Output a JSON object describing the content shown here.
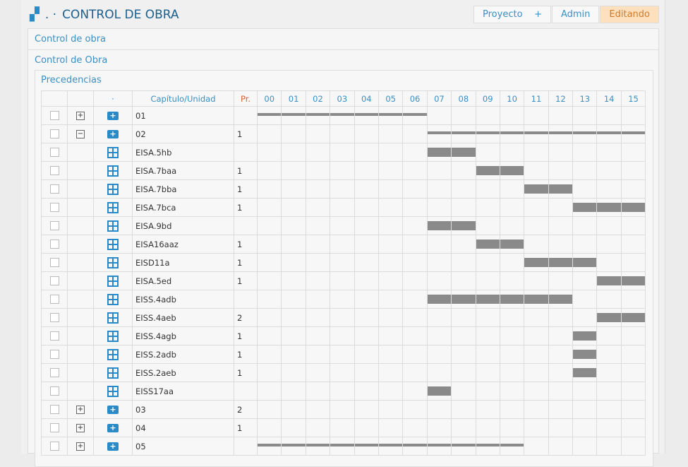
{
  "header": {
    "title": "CONTROL DE OBRA",
    "dots": ". ·",
    "buttons": [
      "Proyecto",
      "Admin",
      "Editando"
    ],
    "plus": "+"
  },
  "section1": "Control de obra",
  "section2": "Control de Obra",
  "panel": "Precedencias",
  "columns": {
    "dot": "·",
    "name": "Capítulo/Unidad",
    "pr": "Pr.",
    "weeks": [
      "00",
      "01",
      "02",
      "03",
      "04",
      "05",
      "06",
      "07",
      "08",
      "09",
      "10",
      "11",
      "12",
      "13",
      "14",
      "15"
    ]
  },
  "rows": [
    {
      "type": "chapter",
      "expand": "+",
      "name": "01",
      "pr": "",
      "start": 0,
      "end": 6
    },
    {
      "type": "chapter",
      "expand": "−",
      "name": "02",
      "pr": "1",
      "start": 7,
      "end": 15
    },
    {
      "type": "unit",
      "name": "EISA.5hb",
      "pr": "",
      "start": 7,
      "end": 8
    },
    {
      "type": "unit",
      "name": "EISA.7baa",
      "pr": "1",
      "start": 9,
      "end": 10
    },
    {
      "type": "unit",
      "name": "EISA.7bba",
      "pr": "1",
      "start": 11,
      "end": 12
    },
    {
      "type": "unit",
      "name": "EISA.7bca",
      "pr": "1",
      "start": 13,
      "end": 15
    },
    {
      "type": "unit",
      "name": "EISA.9bd",
      "pr": "",
      "start": 7,
      "end": 8
    },
    {
      "type": "unit",
      "name": "EISA16aaz",
      "pr": "1",
      "start": 9,
      "end": 10
    },
    {
      "type": "unit",
      "name": "EISD11a",
      "pr": "1",
      "start": 11,
      "end": 13
    },
    {
      "type": "unit",
      "name": "EISA.5ed",
      "pr": "1",
      "start": 14,
      "end": 15
    },
    {
      "type": "unit",
      "name": "EISS.4adb",
      "pr": "",
      "start": 7,
      "end": 12
    },
    {
      "type": "unit",
      "name": "EISS.4aeb",
      "pr": "2",
      "start": 14,
      "end": 15
    },
    {
      "type": "unit",
      "name": "EISS.4agb",
      "pr": "1",
      "start": 13,
      "end": 13
    },
    {
      "type": "unit",
      "name": "EISS.2adb",
      "pr": "1",
      "start": 13,
      "end": 13
    },
    {
      "type": "unit",
      "name": "EISS.2aeb",
      "pr": "1",
      "start": 13,
      "end": 13
    },
    {
      "type": "unit",
      "name": "EISS17aa",
      "pr": "",
      "start": 7,
      "end": 7
    },
    {
      "type": "chapter",
      "expand": "+",
      "name": "03",
      "pr": "2",
      "start": null,
      "end": null
    },
    {
      "type": "chapter",
      "expand": "+",
      "name": "04",
      "pr": "1",
      "start": null,
      "end": null
    },
    {
      "type": "chapter",
      "expand": "+",
      "name": "05",
      "pr": "",
      "start": 0,
      "end": 10
    }
  ]
}
